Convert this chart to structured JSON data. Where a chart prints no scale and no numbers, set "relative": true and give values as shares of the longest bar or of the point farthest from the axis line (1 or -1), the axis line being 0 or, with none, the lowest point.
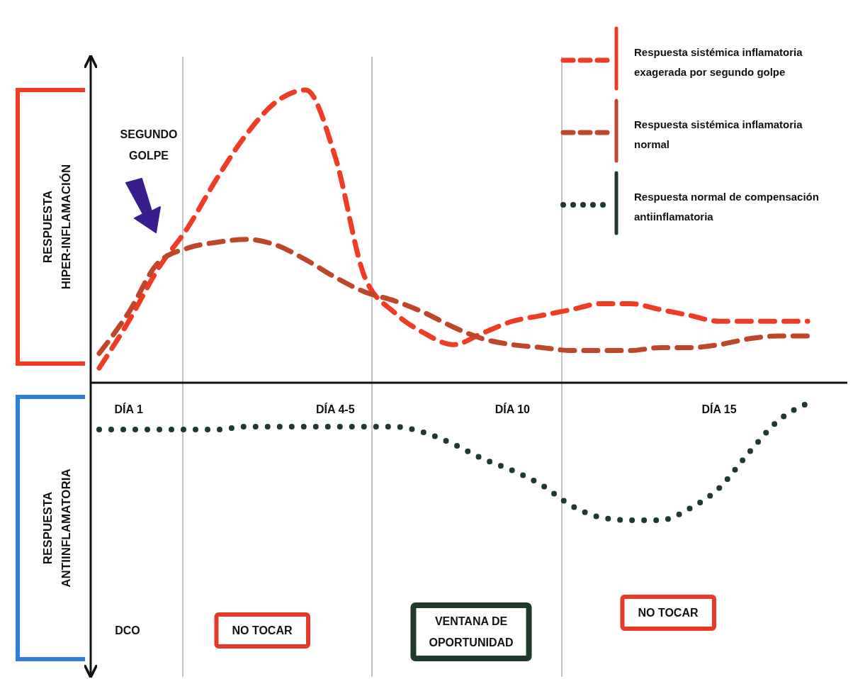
{
  "chart_data": {
    "type": "line",
    "relative": true,
    "categories": [
      null,
      "DÍA 1",
      null,
      null,
      null,
      null,
      null,
      null,
      "DÍA 4-5",
      null,
      null,
      null,
      null,
      null,
      "DÍA 10",
      null,
      null,
      null,
      null,
      null,
      null,
      "DÍA 15",
      null,
      null,
      null
    ],
    "series": [
      {
        "name": "Respuesta sistémica inflamatoria exagerada por segundo golpe",
        "color": "#f03c24",
        "line_style": "dashed",
        "values": [
          0.05,
          0.21,
          0.39,
          0.53,
          0.7,
          0.85,
          0.96,
          1,
          0.77,
          0.36,
          0.24,
          0.17,
          0.13,
          0.17,
          0.21,
          0.23,
          0.25,
          0.27,
          0.27,
          0.25,
          0.23,
          0.21,
          0.21,
          0.21,
          0.21
        ]
      },
      {
        "name": "Respuesta sistémica inflamatoria normal",
        "color": "#c0462a",
        "line_style": "dashed",
        "values": [
          0.1,
          0.24,
          0.41,
          0.46,
          0.48,
          0.49,
          0.47,
          0.42,
          0.36,
          0.31,
          0.28,
          0.24,
          0.19,
          0.15,
          0.13,
          0.12,
          0.11,
          0.11,
          0.11,
          0.12,
          0.12,
          0.13,
          0.15,
          0.16,
          0.16
        ]
      },
      {
        "name": "Respuesta normal de compensación antiinflamatoria",
        "color": "#1f3a2a",
        "line_style": "dotted",
        "values": [
          -0.16,
          -0.16,
          -0.16,
          -0.16,
          -0.16,
          -0.15,
          -0.15,
          -0.15,
          -0.15,
          -0.15,
          -0.15,
          -0.17,
          -0.21,
          -0.26,
          -0.3,
          -0.35,
          -0.42,
          -0.46,
          -0.47,
          -0.47,
          -0.43,
          -0.36,
          -0.24,
          -0.13,
          -0.07
        ]
      }
    ],
    "annotations": [
      "SEGUNDO\nGOLPE",
      "RESPUESTA\nHIPER-INFLAMACIÓN",
      "RESPUESTA\nANTIINFLAMATORIA",
      "DCO",
      "NO TOCAR",
      "VENTANA DE\nOPORTUNIDAD",
      "NO TOCAR"
    ],
    "legend": "top right"
  }
}
